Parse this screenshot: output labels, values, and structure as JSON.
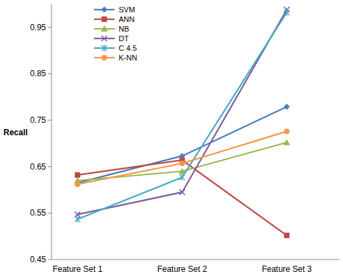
{
  "chart_data": {
    "type": "line",
    "y_label": "Recall",
    "categories": [
      "Feature Set 1",
      "Feature Set 2",
      "Feature Set 3"
    ],
    "ylim": [
      0.45,
      1.0
    ],
    "yticks": [
      0.45,
      0.55,
      0.65,
      0.75,
      0.85,
      0.95
    ],
    "grid": false,
    "legend": "upper left",
    "series": [
      {
        "name": "SVM",
        "color": "#4a7ebb",
        "marker": "diamond",
        "values": [
          0.615,
          0.673,
          0.779
        ]
      },
      {
        "name": "ANN",
        "color": "#be4b48",
        "marker": "square",
        "values": [
          0.632,
          0.664,
          0.502
        ]
      },
      {
        "name": "NB",
        "color": "#98b954",
        "marker": "triangle",
        "values": [
          0.62,
          0.64,
          0.702
        ]
      },
      {
        "name": "DT",
        "color": "#7d60a0",
        "marker": "x",
        "values": [
          0.547,
          0.595,
          0.988
        ]
      },
      {
        "name": "C 4.5",
        "color": "#46aac5",
        "marker": "star",
        "values": [
          0.537,
          0.627,
          0.982
        ]
      },
      {
        "name": "K-NN",
        "color": "#f79646",
        "marker": "circle",
        "values": [
          0.612,
          0.657,
          0.726
        ]
      }
    ]
  }
}
